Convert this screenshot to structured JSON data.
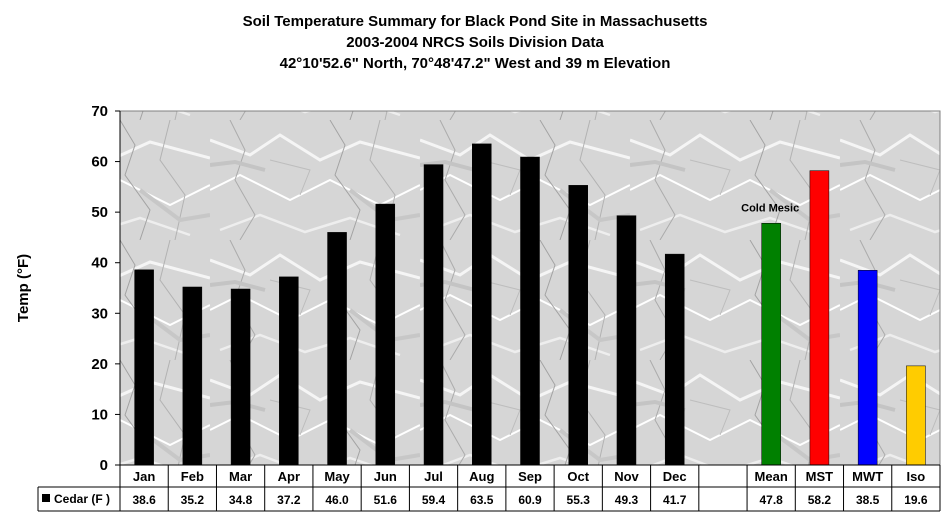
{
  "chart_data": {
    "type": "bar",
    "title": [
      "Soil Temperature Summary for Black Pond Site in Massachusetts",
      "2003-2004 NRCS Soils Division Data",
      "42°10'52.6\" North, 70°48'47.2\" West and 39 m Elevation"
    ],
    "ylabel": "Temp (°F)",
    "ylim": [
      0,
      70
    ],
    "yticks": [
      0,
      10,
      20,
      30,
      40,
      50,
      60,
      70
    ],
    "grid": false,
    "categories": [
      "Jan",
      "Feb",
      "Mar",
      "Apr",
      "May",
      "Jun",
      "Jul",
      "Aug",
      "Sep",
      "Oct",
      "Nov",
      "Dec",
      "",
      "Mean",
      "MST",
      "MWT",
      "Iso"
    ],
    "series": [
      {
        "name": "Cedar (F )",
        "values": [
          38.6,
          35.2,
          34.8,
          37.2,
          46.0,
          51.6,
          59.4,
          63.5,
          60.9,
          55.3,
          49.3,
          41.7,
          null,
          47.8,
          58.2,
          38.5,
          19.6
        ],
        "value_labels": [
          "38.6",
          "35.2",
          "34.8",
          "37.2",
          "46.0",
          "51.6",
          "59.4",
          "63.5",
          "60.9",
          "55.3",
          "49.3",
          "41.7",
          "",
          "47.8",
          "58.2",
          "38.5",
          "19.6"
        ],
        "colors": [
          "#000000",
          "#000000",
          "#000000",
          "#000000",
          "#000000",
          "#000000",
          "#000000",
          "#000000",
          "#000000",
          "#000000",
          "#000000",
          "#000000",
          "#000000",
          "#008000",
          "#ff0000",
          "#0000ff",
          "#ffcc00"
        ]
      }
    ],
    "annotations": [
      {
        "text": "Cold Mesic",
        "category": "Mean"
      }
    ],
    "legend_placement": "table-left",
    "plot_background": "gray marble texture"
  }
}
